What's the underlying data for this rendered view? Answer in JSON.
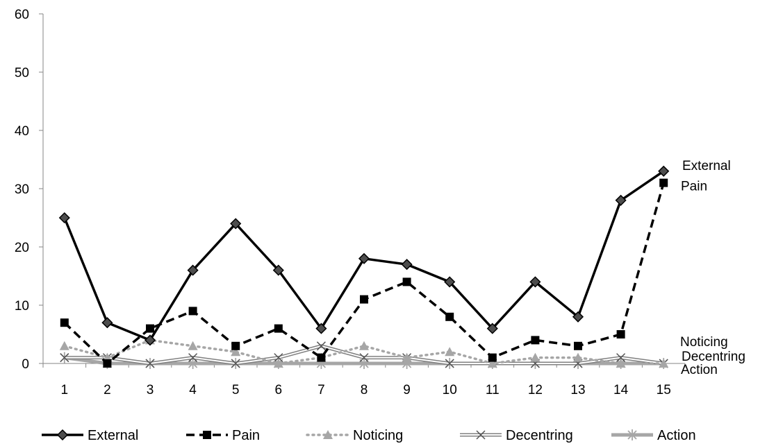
{
  "chart_data": {
    "type": "line",
    "title": "",
    "xlabel": "",
    "ylabel": "",
    "categories": [
      "1",
      "2",
      "3",
      "4",
      "5",
      "6",
      "7",
      "8",
      "9",
      "10",
      "11",
      "12",
      "13",
      "14",
      "15"
    ],
    "ylim": [
      0,
      60
    ],
    "yticks": [
      0,
      10,
      20,
      30,
      40,
      50,
      60
    ],
    "grid": false,
    "legend": "bottom",
    "series": [
      {
        "name": "External",
        "values": [
          25,
          7,
          4,
          16,
          24,
          16,
          6,
          18,
          17,
          14,
          6,
          14,
          8,
          28,
          33
        ],
        "end_label": "External",
        "color": "#000000",
        "marker": "diamond",
        "line": "solid"
      },
      {
        "name": "Pain",
        "values": [
          7,
          0,
          6,
          9,
          3,
          6,
          1,
          11,
          14,
          8,
          1,
          4,
          3,
          5,
          31
        ],
        "end_label": "Pain",
        "color": "#000000",
        "marker": "square",
        "line": "dashed"
      },
      {
        "name": "Noticing",
        "values": [
          3,
          1,
          4,
          3,
          2,
          0,
          1,
          3,
          1,
          2,
          0,
          1,
          1,
          0,
          0
        ],
        "end_label": "Noticing",
        "color": "#a6a6a6",
        "marker": "triangle",
        "line": "dotted"
      },
      {
        "name": "Decentring",
        "values": [
          1,
          1,
          0,
          1,
          0,
          1,
          3,
          1,
          1,
          0,
          0,
          0,
          0,
          1,
          0
        ],
        "end_label": "Decentring",
        "color": "#808080",
        "marker": "x",
        "line": "double"
      },
      {
        "name": "Action",
        "values": [
          1,
          0,
          0,
          0,
          0,
          0,
          0,
          0,
          0,
          0,
          0,
          0,
          0,
          0,
          0
        ],
        "end_label": "Action",
        "color": "#a6a6a6",
        "marker": "asterisk",
        "line": "thick"
      }
    ]
  }
}
